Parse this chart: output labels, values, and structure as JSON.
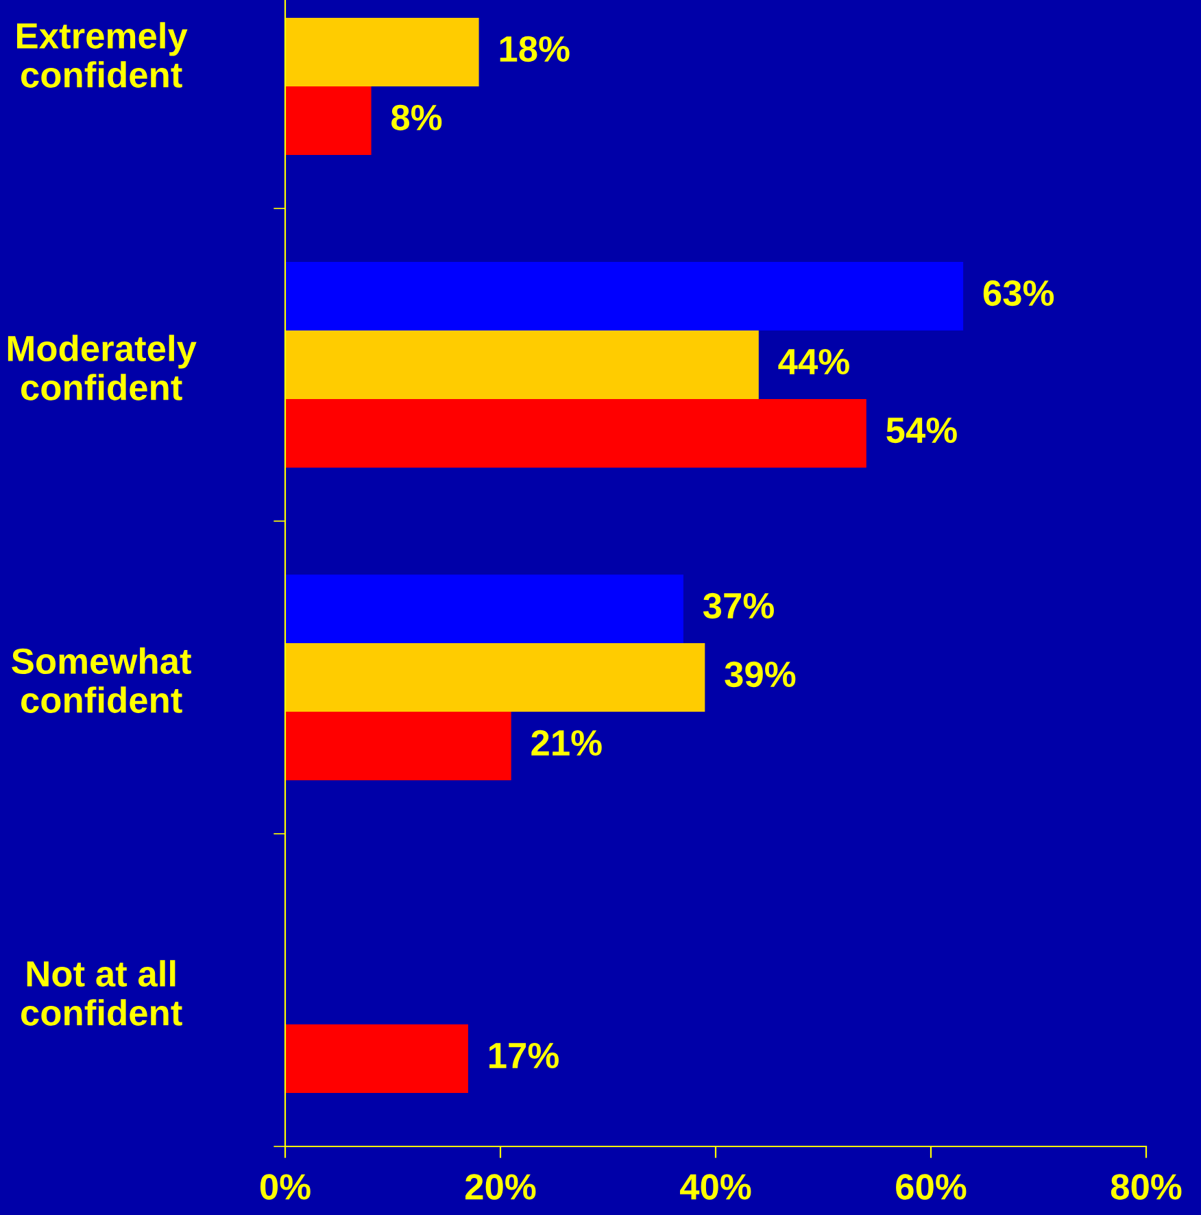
{
  "chart_data": {
    "type": "bar",
    "orientation": "horizontal",
    "categories": [
      "Extremely\nconfident",
      "Moderately\nconfident",
      "Somewhat\nconfident",
      "Not at all\nconfident"
    ],
    "series": [
      {
        "color": "#0000ff",
        "values": [
          null,
          63,
          37,
          null
        ],
        "value_labels": [
          null,
          "63%",
          "37%",
          null
        ]
      },
      {
        "color": "#ffcc00",
        "values": [
          18,
          44,
          39,
          null
        ],
        "value_labels": [
          "18%",
          "44%",
          "39%",
          null
        ]
      },
      {
        "color": "#ff0000",
        "values": [
          8,
          54,
          21,
          17
        ],
        "value_labels": [
          "8%",
          "54%",
          "21%",
          "17%"
        ]
      }
    ],
    "xlim": [
      0,
      80
    ],
    "xticks": [
      {
        "value": 0,
        "label": "0%"
      },
      {
        "value": 20,
        "label": "20%"
      },
      {
        "value": 40,
        "label": "40%"
      },
      {
        "value": 60,
        "label": "60%"
      },
      {
        "value": 80,
        "label": "80%"
      }
    ],
    "grid": false,
    "legend": false
  }
}
